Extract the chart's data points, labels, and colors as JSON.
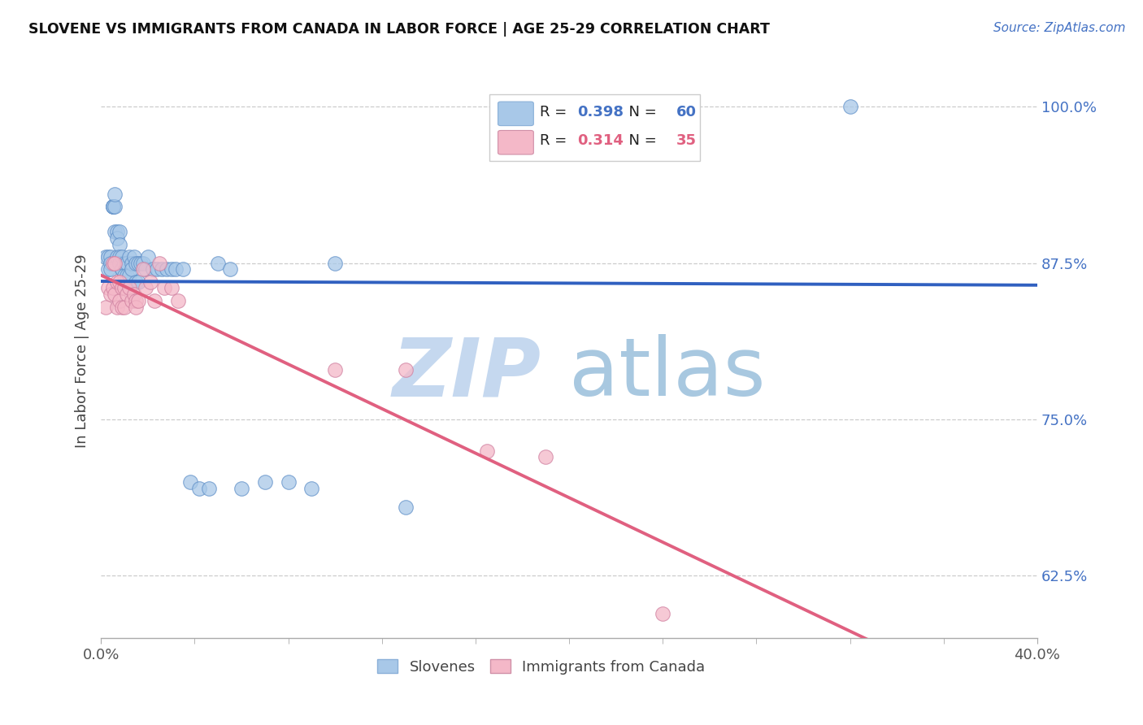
{
  "title": "SLOVENE VS IMMIGRANTS FROM CANADA IN LABOR FORCE | AGE 25-29 CORRELATION CHART",
  "source": "Source: ZipAtlas.com",
  "ylabel": "In Labor Force | Age 25-29",
  "xlim": [
    0.0,
    0.4
  ],
  "ylim": [
    0.575,
    1.035
  ],
  "yticks": [
    0.625,
    0.75,
    0.875,
    1.0
  ],
  "ytick_labels": [
    "62.5%",
    "75.0%",
    "87.5%",
    "100.0%"
  ],
  "xtick_positions": [
    0.0,
    0.4
  ],
  "xtick_labels": [
    "0.0%",
    "40.0%"
  ],
  "blue_R": 0.398,
  "blue_N": 60,
  "pink_R": 0.314,
  "pink_N": 35,
  "blue_color": "#a8c8e8",
  "pink_color": "#f4b8c8",
  "blue_line_color": "#3060c0",
  "pink_line_color": "#e06080",
  "watermark_zip": "ZIP",
  "watermark_atlas": "atlas",
  "blue_scatter_x": [
    0.002,
    0.003,
    0.003,
    0.004,
    0.004,
    0.004,
    0.005,
    0.005,
    0.005,
    0.005,
    0.006,
    0.006,
    0.006,
    0.007,
    0.007,
    0.007,
    0.008,
    0.008,
    0.008,
    0.008,
    0.009,
    0.009,
    0.009,
    0.01,
    0.01,
    0.011,
    0.011,
    0.012,
    0.012,
    0.013,
    0.013,
    0.014,
    0.015,
    0.015,
    0.016,
    0.016,
    0.017,
    0.018,
    0.019,
    0.02,
    0.022,
    0.024,
    0.026,
    0.028,
    0.03,
    0.032,
    0.035,
    0.038,
    0.042,
    0.046,
    0.05,
    0.055,
    0.06,
    0.07,
    0.08,
    0.09,
    0.1,
    0.13,
    0.25,
    0.32
  ],
  "blue_scatter_y": [
    0.88,
    0.88,
    0.87,
    0.88,
    0.875,
    0.87,
    0.92,
    0.92,
    0.92,
    0.92,
    0.9,
    0.92,
    0.93,
    0.9,
    0.895,
    0.88,
    0.9,
    0.89,
    0.88,
    0.875,
    0.88,
    0.87,
    0.87,
    0.875,
    0.865,
    0.875,
    0.865,
    0.88,
    0.865,
    0.875,
    0.87,
    0.88,
    0.875,
    0.86,
    0.875,
    0.86,
    0.875,
    0.875,
    0.87,
    0.88,
    0.87,
    0.87,
    0.87,
    0.87,
    0.87,
    0.87,
    0.87,
    0.7,
    0.695,
    0.695,
    0.875,
    0.87,
    0.695,
    0.7,
    0.7,
    0.695,
    0.875,
    0.68,
    1.0,
    1.0
  ],
  "pink_scatter_x": [
    0.002,
    0.003,
    0.004,
    0.005,
    0.005,
    0.006,
    0.006,
    0.007,
    0.007,
    0.008,
    0.008,
    0.009,
    0.009,
    0.01,
    0.01,
    0.011,
    0.012,
    0.013,
    0.014,
    0.015,
    0.015,
    0.016,
    0.018,
    0.019,
    0.021,
    0.023,
    0.025,
    0.027,
    0.03,
    0.033,
    0.1,
    0.13,
    0.165,
    0.19,
    0.24
  ],
  "pink_scatter_y": [
    0.84,
    0.855,
    0.85,
    0.875,
    0.855,
    0.875,
    0.85,
    0.86,
    0.84,
    0.86,
    0.845,
    0.855,
    0.84,
    0.855,
    0.84,
    0.85,
    0.855,
    0.845,
    0.85,
    0.845,
    0.84,
    0.845,
    0.87,
    0.855,
    0.86,
    0.845,
    0.875,
    0.855,
    0.855,
    0.845,
    0.79,
    0.79,
    0.725,
    0.72,
    0.595
  ]
}
